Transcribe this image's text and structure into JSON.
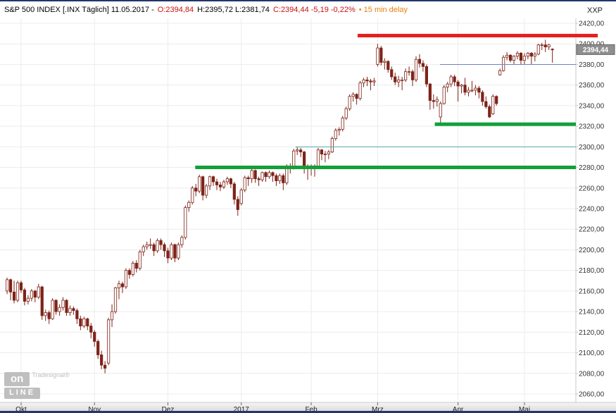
{
  "header": {
    "title": "S&P 500 INDEX [.INX Täglich] 11.05.2017 -",
    "open": "O:2394,84",
    "high_low": "H:2395,72 L:2381,74",
    "close_change": "C:2394,44 -5,19 -0,22%",
    "delay": "• 15 min delay",
    "exchange": "XXP"
  },
  "colors": {
    "negative": "#cc1111",
    "delay_orange": "#e8820a",
    "grid": "#ececec",
    "axis_line": "#c8c8c8",
    "axis_text": "#333333",
    "candle_down": "#7e2318",
    "candle_up_fill": "#ffffff",
    "marker_bg": "#8f8f8f",
    "marker_border": "#616161",
    "marker_text": "#ffffff",
    "bottom_bar_top": "#f6f6f6",
    "bottom_bar_bottom": "#d2d2d2",
    "month_text": "#222222"
  },
  "logo": {
    "on": "on",
    "brand": "Tradesignal®",
    "line": "LINE"
  },
  "price_marker": {
    "label": "2394,44",
    "value": 2394.44
  },
  "chart_data": {
    "type": "candlestick",
    "title": "S&P 500 INDEX [.INX] daily, Oct 2016 - 11.05.2017",
    "y_axis": {
      "min": 2060,
      "max": 2420,
      "step": 20,
      "tick_labels": [
        "2420,00",
        "2400,00",
        "2380,00",
        "2360,00",
        "2340,00",
        "2320,00",
        "2300,00",
        "2280,00",
        "2260,00",
        "2240,00",
        "2220,00",
        "2200,00",
        "2180,00",
        "2160,00",
        "2140,00",
        "2120,00",
        "2100,00",
        "2080,00",
        "2060,00"
      ]
    },
    "months": [
      {
        "label": "Okt",
        "index": 4
      },
      {
        "label": "Nov",
        "index": 25
      },
      {
        "label": "Dez",
        "index": 46
      },
      {
        "label": "2017",
        "index": 67
      },
      {
        "label": "Feb",
        "index": 87
      },
      {
        "label": "Mrz",
        "index": 106
      },
      {
        "label": "Apr",
        "index": 129
      },
      {
        "label": "Mai",
        "index": 148
      }
    ],
    "levels": [
      {
        "name": "resistance-red",
        "price": 2408,
        "color": "#e62020",
        "width": 5,
        "from": 0.621,
        "to": 1.038
      },
      {
        "name": "minor-blue",
        "price": 2380,
        "color": "#7080c8",
        "width": 1,
        "from": 0.764,
        "to": 1.0
      },
      {
        "name": "support-green-upper",
        "price": 2322,
        "color": "#13a038",
        "width": 5,
        "from": 0.755,
        "to": 1.0
      },
      {
        "name": "minor-teal",
        "price": 2300,
        "color": "#55aaa2",
        "width": 1,
        "from": 0.513,
        "to": 1.0
      },
      {
        "name": "support-green-lower",
        "price": 2280,
        "color": "#13a038",
        "width": 5,
        "from": 0.339,
        "to": 1.0
      }
    ],
    "ohlc": [
      [
        2160,
        2173,
        2157,
        2171
      ],
      [
        2171,
        2172,
        2151,
        2159
      ],
      [
        2159,
        2170,
        2148,
        2151
      ],
      [
        2151,
        2170,
        2149,
        2168
      ],
      [
        2168,
        2170,
        2158,
        2161
      ],
      [
        2161,
        2163,
        2146,
        2150
      ],
      [
        2150,
        2156,
        2147,
        2153
      ],
      [
        2153,
        2162,
        2150,
        2160
      ],
      [
        2160,
        2161,
        2149,
        2154
      ],
      [
        2154,
        2167,
        2152,
        2164
      ],
      [
        2164,
        2165,
        2132,
        2136
      ],
      [
        2136,
        2142,
        2131,
        2139
      ],
      [
        2139,
        2141,
        2128,
        2133
      ],
      [
        2133,
        2153,
        2132,
        2151
      ],
      [
        2151,
        2152,
        2137,
        2140
      ],
      [
        2140,
        2147,
        2136,
        2144
      ],
      [
        2144,
        2154,
        2141,
        2151
      ],
      [
        2151,
        2152,
        2136,
        2139
      ],
      [
        2139,
        2146,
        2136,
        2143
      ],
      [
        2143,
        2145,
        2137,
        2141
      ],
      [
        2141,
        2143,
        2128,
        2133
      ],
      [
        2133,
        2136,
        2122,
        2126
      ],
      [
        2126,
        2135,
        2124,
        2133
      ],
      [
        2133,
        2134,
        2122,
        2126
      ],
      [
        2126,
        2129,
        2114,
        2120
      ],
      [
        2120,
        2122,
        2106,
        2111
      ],
      [
        2111,
        2113,
        2094,
        2098
      ],
      [
        2098,
        2102,
        2084,
        2088
      ],
      [
        2088,
        2092,
        2080,
        2085
      ],
      [
        2090,
        2134,
        2088,
        2132
      ],
      [
        2132,
        2147,
        2125,
        2140
      ],
      [
        2140,
        2164,
        2138,
        2163
      ],
      [
        2163,
        2170,
        2152,
        2167
      ],
      [
        2167,
        2169,
        2158,
        2164
      ],
      [
        2164,
        2182,
        2162,
        2180
      ],
      [
        2180,
        2182,
        2172,
        2176
      ],
      [
        2176,
        2189,
        2174,
        2187
      ],
      [
        2187,
        2190,
        2178,
        2182
      ],
      [
        2182,
        2200,
        2180,
        2198
      ],
      [
        2198,
        2205,
        2194,
        2203
      ],
      [
        2203,
        2208,
        2200,
        2205
      ],
      [
        2205,
        2211,
        2201,
        2205
      ],
      [
        2205,
        2207,
        2194,
        2199
      ],
      [
        2199,
        2211,
        2197,
        2209
      ],
      [
        2209,
        2211,
        2200,
        2205
      ],
      [
        2205,
        2207,
        2193,
        2199
      ],
      [
        2199,
        2202,
        2187,
        2192
      ],
      [
        2192,
        2207,
        2190,
        2205
      ],
      [
        2205,
        2206,
        2188,
        2192
      ],
      [
        2192,
        2207,
        2190,
        2205
      ],
      [
        2205,
        2214,
        2202,
        2212
      ],
      [
        2212,
        2243,
        2210,
        2241
      ],
      [
        2241,
        2248,
        2237,
        2246
      ],
      [
        2246,
        2262,
        2244,
        2260
      ],
      [
        2260,
        2264,
        2252,
        2257
      ],
      [
        2257,
        2273,
        2255,
        2271
      ],
      [
        2271,
        2272,
        2248,
        2253
      ],
      [
        2253,
        2264,
        2250,
        2262
      ],
      [
        2262,
        2272,
        2258,
        2271
      ],
      [
        2271,
        2272,
        2262,
        2266
      ],
      [
        2266,
        2269,
        2258,
        2263
      ],
      [
        2263,
        2266,
        2257,
        2261
      ],
      [
        2261,
        2268,
        2259,
        2266
      ],
      [
        2266,
        2271,
        2263,
        2269
      ],
      [
        2269,
        2270,
        2260,
        2264
      ],
      [
        2264,
        2266,
        2244,
        2249
      ],
      [
        2249,
        2252,
        2233,
        2239
      ],
      [
        2245,
        2260,
        2243,
        2258
      ],
      [
        2258,
        2272,
        2256,
        2270
      ],
      [
        2270,
        2272,
        2262,
        2269
      ],
      [
        2269,
        2279,
        2265,
        2277
      ],
      [
        2277,
        2278,
        2265,
        2269
      ],
      [
        2269,
        2271,
        2262,
        2268
      ],
      [
        2268,
        2276,
        2266,
        2275
      ],
      [
        2275,
        2276,
        2266,
        2271
      ],
      [
        2271,
        2277,
        2269,
        2275
      ],
      [
        2275,
        2276,
        2266,
        2272
      ],
      [
        2272,
        2274,
        2262,
        2267
      ],
      [
        2267,
        2274,
        2264,
        2272
      ],
      [
        2272,
        2274,
        2258,
        2265
      ],
      [
        2265,
        2283,
        2263,
        2281
      ],
      [
        2281,
        2284,
        2274,
        2280
      ],
      [
        2280,
        2298,
        2278,
        2296
      ],
      [
        2296,
        2300,
        2292,
        2297
      ],
      [
        2297,
        2299,
        2290,
        2295
      ],
      [
        2295,
        2296,
        2274,
        2280
      ],
      [
        2280,
        2283,
        2268,
        2279
      ],
      [
        2279,
        2283,
        2272,
        2280
      ],
      [
        2280,
        2283,
        2271,
        2281
      ],
      [
        2281,
        2299,
        2280,
        2297
      ],
      [
        2297,
        2298,
        2287,
        2293
      ],
      [
        2293,
        2296,
        2285,
        2293
      ],
      [
        2293,
        2297,
        2288,
        2295
      ],
      [
        2295,
        2310,
        2294,
        2308
      ],
      [
        2308,
        2318,
        2306,
        2316
      ],
      [
        2316,
        2319,
        2311,
        2317
      ],
      [
        2317,
        2330,
        2315,
        2328
      ],
      [
        2328,
        2339,
        2326,
        2337
      ],
      [
        2337,
        2351,
        2335,
        2349
      ],
      [
        2349,
        2353,
        2344,
        2351
      ],
      [
        2351,
        2352,
        2341,
        2347
      ],
      [
        2347,
        2364,
        2345,
        2362
      ],
      [
        2362,
        2367,
        2358,
        2365
      ],
      [
        2365,
        2368,
        2359,
        2364
      ],
      [
        2364,
        2366,
        2355,
        2363
      ],
      [
        2363,
        2367,
        2359,
        2364
      ],
      [
        2380,
        2400,
        2378,
        2396
      ],
      [
        2396,
        2398,
        2379,
        2382
      ],
      [
        2382,
        2386,
        2375,
        2383
      ],
      [
        2383,
        2384,
        2372,
        2375
      ],
      [
        2375,
        2378,
        2365,
        2368
      ],
      [
        2368,
        2372,
        2360,
        2363
      ],
      [
        2363,
        2369,
        2358,
        2365
      ],
      [
        2365,
        2368,
        2355,
        2365
      ],
      [
        2365,
        2376,
        2363,
        2373
      ],
      [
        2373,
        2378,
        2369,
        2373
      ],
      [
        2373,
        2375,
        2359,
        2365
      ],
      [
        2365,
        2388,
        2363,
        2385
      ],
      [
        2385,
        2390,
        2377,
        2381
      ],
      [
        2381,
        2384,
        2373,
        2378
      ],
      [
        2378,
        2380,
        2358,
        2361
      ],
      [
        2361,
        2362,
        2336,
        2345
      ],
      [
        2345,
        2351,
        2337,
        2344
      ],
      [
        2344,
        2349,
        2339,
        2346
      ],
      [
        2329,
        2344,
        2322,
        2342
      ],
      [
        2342,
        2360,
        2341,
        2358
      ],
      [
        2358,
        2363,
        2353,
        2361
      ],
      [
        2361,
        2370,
        2358,
        2368
      ],
      [
        2368,
        2370,
        2359,
        2363
      ],
      [
        2363,
        2365,
        2344,
        2359
      ],
      [
        2359,
        2361,
        2352,
        2360
      ],
      [
        2360,
        2367,
        2350,
        2353
      ],
      [
        2353,
        2358,
        2349,
        2355
      ],
      [
        2355,
        2364,
        2353,
        2355
      ],
      [
        2355,
        2360,
        2350,
        2357
      ],
      [
        2357,
        2359,
        2347,
        2353
      ],
      [
        2353,
        2355,
        2340,
        2344
      ],
      [
        2344,
        2349,
        2337,
        2339
      ],
      [
        2339,
        2341,
        2328,
        2329
      ],
      [
        2332,
        2351,
        2331,
        2349
      ],
      [
        2349,
        2350,
        2340,
        2342
      ],
      [
        2370,
        2376,
        2369,
        2374
      ],
      [
        2374,
        2389,
        2373,
        2387
      ],
      [
        2387,
        2392,
        2384,
        2389
      ],
      [
        2389,
        2390,
        2382,
        2384
      ],
      [
        2384,
        2389,
        2380,
        2388
      ],
      [
        2388,
        2393,
        2385,
        2391
      ],
      [
        2391,
        2392,
        2380,
        2384
      ],
      [
        2384,
        2391,
        2380,
        2388
      ],
      [
        2388,
        2392,
        2385,
        2391
      ],
      [
        2391,
        2392,
        2380,
        2388
      ],
      [
        2388,
        2392,
        2383,
        2390
      ],
      [
        2390,
        2400,
        2389,
        2399
      ],
      [
        2399,
        2401,
        2394,
        2399
      ],
      [
        2399,
        2404,
        2392,
        2397
      ],
      [
        2397,
        2400,
        2394,
        2399
      ],
      [
        2394.84,
        2395.72,
        2381.74,
        2394.44
      ]
    ]
  }
}
